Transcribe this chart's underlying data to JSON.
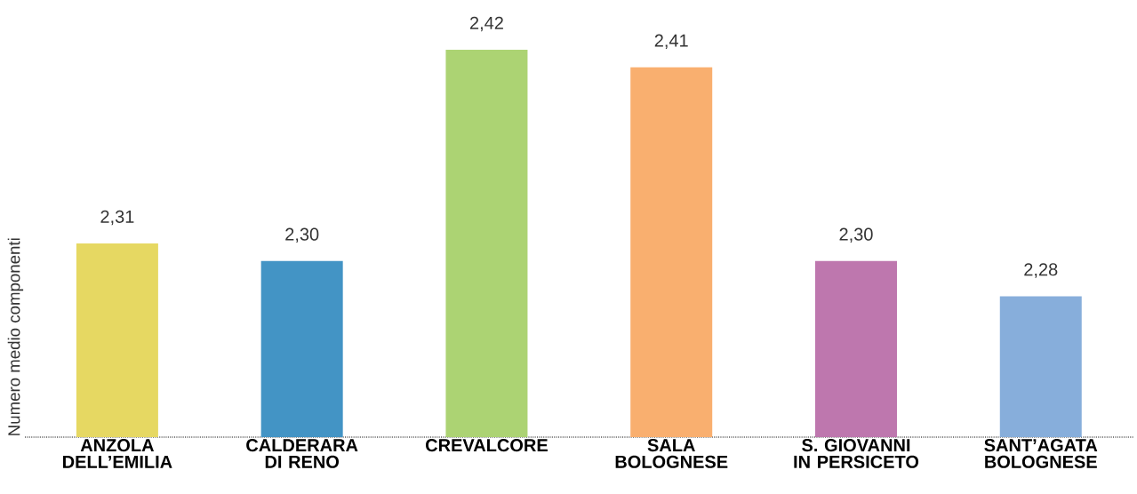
{
  "chart_data": {
    "type": "bar",
    "ylabel": "Numero medio componenti",
    "categories": [
      "ANZOLA DELL’EMILIA",
      "CALDERARA DI RENO",
      "CREVALCORE",
      "SALA BOLOGNESE",
      "S. GIOVANNI IN PERSICETO",
      "SANT’AGATA BOLOGNESE"
    ],
    "values": [
      2.31,
      2.3,
      2.42,
      2.41,
      2.3,
      2.28
    ],
    "colors": [
      "#e6d862",
      "#4394c5",
      "#acd373",
      "#f9af6f",
      "#be77ae",
      "#87aedb"
    ],
    "value_labels": [
      "2,31",
      "2,30",
      "2,42",
      "2,41",
      "2,30",
      "2,28"
    ],
    "ylim": [
      2.2,
      2.42
    ],
    "tick_labels": "x"
  }
}
